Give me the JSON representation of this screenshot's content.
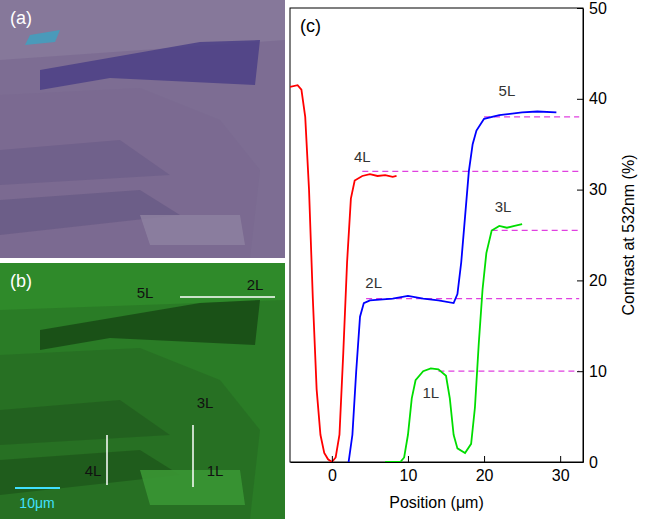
{
  "image_panels": [
    {
      "letter": "(a)"
    },
    {
      "letter": "(b)",
      "labels": [
        "5L",
        "2L",
        "3L",
        "4L",
        "1L"
      ],
      "scale_bar": "10μm"
    }
  ],
  "chart_data": {
    "type": "line",
    "panel_letter": "(c)",
    "x_label": "Position (μm)",
    "y_label": "Contrast at 532nm (%)",
    "xlim": [
      -5.5,
      33
    ],
    "ylim": [
      0,
      50
    ],
    "xticks": [
      0,
      10,
      20,
      30
    ],
    "yticks": [
      0,
      10,
      20,
      30,
      40,
      50
    ],
    "series": [
      {
        "color": "#ff0000",
        "x": [
          -5.5,
          -4.5,
          -4,
          -3.5,
          -3,
          -2.5,
          -2,
          -1.5,
          -1,
          -0.5,
          0,
          0.5,
          1,
          1.5,
          2,
          2.5,
          3,
          4,
          5,
          6,
          7,
          8,
          8.5
        ],
        "values": [
          41.3,
          41.5,
          41,
          38,
          30,
          18,
          8,
          3,
          1,
          0.3,
          0,
          0.5,
          3,
          12,
          22,
          29,
          31,
          31.5,
          31.7,
          31.5,
          31.6,
          31.4,
          31.5
        ]
      },
      {
        "color": "#0000ff",
        "x": [
          2.2,
          2.7,
          3.2,
          3.7,
          4.2,
          5,
          8,
          10,
          12,
          14,
          16,
          16.5,
          17,
          17.5,
          18,
          18.5,
          19,
          20,
          22,
          25,
          27,
          29.5
        ],
        "values": [
          0,
          3,
          10,
          16,
          17.5,
          17.8,
          18,
          18.3,
          18,
          17.8,
          17.5,
          18.5,
          22,
          27,
          32,
          35,
          36.5,
          37.8,
          38.2,
          38.5,
          38.6,
          38.5
        ]
      },
      {
        "color": "#00dd00",
        "x": [
          7,
          9,
          9.5,
          10,
          10.5,
          11,
          12,
          13,
          14,
          15,
          15.5,
          16,
          16.5,
          17.5,
          18.3,
          18.8,
          19.3,
          19.8,
          20.3,
          21,
          22,
          23,
          24,
          25
        ],
        "values": [
          0,
          0,
          0.5,
          3,
          7,
          9,
          10,
          10.3,
          10.2,
          9.5,
          7,
          3,
          1.5,
          1,
          2,
          6,
          13,
          19,
          23,
          25.5,
          26,
          25.8,
          26,
          26.2
        ]
      }
    ],
    "reference_lines": [
      {
        "value": 32,
        "x": [
          4,
          32.5
        ],
        "color": "#e040e0",
        "line_style": "dashed"
      },
      {
        "value": 38,
        "x": [
          20,
          32.5
        ],
        "color": "#e040e0",
        "line_style": "dashed"
      },
      {
        "value": 18,
        "x": [
          4.5,
          32.5
        ],
        "color": "#e040e0",
        "line_style": "dashed"
      },
      {
        "value": 25.5,
        "x": [
          21,
          32.5
        ],
        "color": "#e040e0",
        "line_style": "dashed"
      },
      {
        "value": 10,
        "x": [
          14,
          32.5
        ],
        "color": "#e040e0",
        "line_style": "dashed"
      }
    ],
    "annotations": [
      {
        "text": "4L",
        "x": 4,
        "y": 33
      },
      {
        "text": "5L",
        "x": 23,
        "y": 40.3
      },
      {
        "text": "2L",
        "x": 5.5,
        "y": 19.2
      },
      {
        "text": "3L",
        "x": 22.5,
        "y": 27.5
      },
      {
        "text": "1L",
        "x": 13,
        "y": 7
      }
    ]
  }
}
